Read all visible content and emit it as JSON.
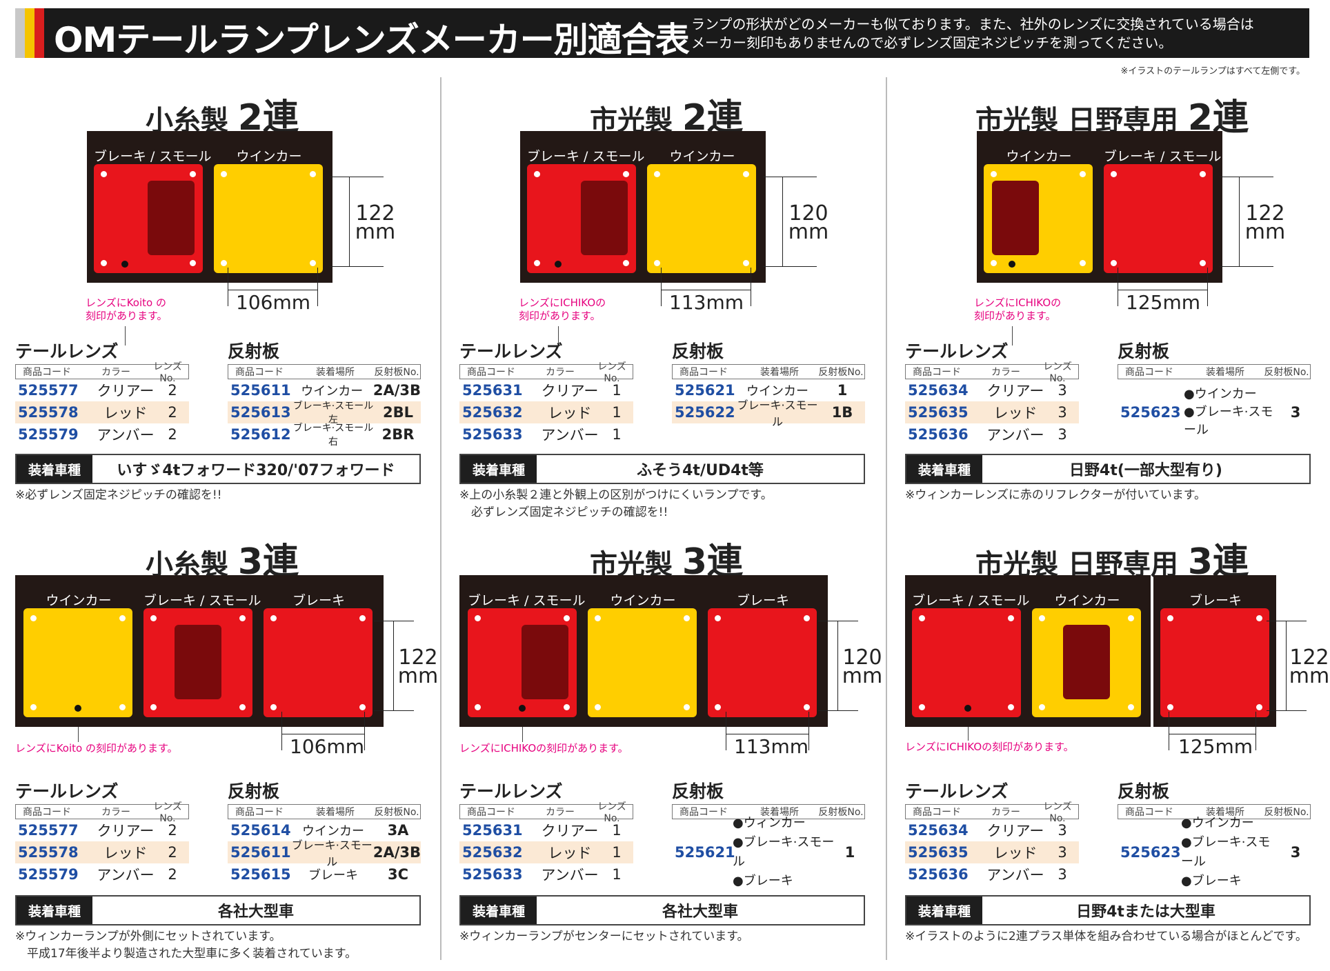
{
  "header": {
    "title": "OMテールランプレンズメーカー別適合表",
    "subtitle_line1": "ランプの形状がどのメーカーも似ております。また、社外のレンズに交換されている場合は",
    "subtitle_line2": "メーカー刻印もありませんので必ずレンズ固定ネジピッチを測ってください。",
    "note": "※イラストのテールランプはすべて左側です。"
  },
  "common": {
    "lens_heading": "テールレンズ",
    "refl_heading": "反射板",
    "lens_cols": [
      "商品コード",
      "カラー",
      "レンズNo."
    ],
    "refl_cols": [
      "商品コード",
      "装着場所",
      "反射板No."
    ],
    "car_label": "装着車種"
  },
  "sections": [
    {
      "title": "小糸製",
      "title_big": "2連",
      "panel_labels": [
        "ブレーキ / スモール",
        "ウインカー"
      ],
      "height_val": "122",
      "height_unit": "mm",
      "width": "106mm",
      "mark_note_1": "レンズにKoito の",
      "mark_note_2": "刻印があります。",
      "lens_rows": [
        {
          "code": "525577",
          "color": "クリアー",
          "no": "2"
        },
        {
          "code": "525578",
          "color": "レッド",
          "no": "2"
        },
        {
          "code": "525579",
          "color": "アンバー",
          "no": "2"
        }
      ],
      "refl_rows": [
        {
          "code": "525611",
          "place": "ウインカー",
          "no": "2A/3B"
        },
        {
          "code": "525613",
          "place": "ブレーキ·スモール左",
          "no": "2BL"
        },
        {
          "code": "525612",
          "place": "ブレーキ·スモール右",
          "no": "2BR"
        }
      ],
      "car": "いすゞ4tフォワード320/'07フォワード",
      "foot_1": "※必ずレンズ固定ネジピッチの確認を!!",
      "foot_2": ""
    },
    {
      "title": "市光製",
      "title_big": "2連",
      "panel_labels": [
        "ブレーキ / スモール",
        "ウインカー"
      ],
      "height_val": "120",
      "height_unit": "mm",
      "width": "113mm",
      "mark_note_1": "レンズにICHIKOの",
      "mark_note_2": "刻印があります。",
      "lens_rows": [
        {
          "code": "525631",
          "color": "クリアー",
          "no": "1"
        },
        {
          "code": "525632",
          "color": "レッド",
          "no": "1"
        },
        {
          "code": "525633",
          "color": "アンバー",
          "no": "1"
        }
      ],
      "refl_rows": [
        {
          "code": "525621",
          "place": "ウインカー",
          "no": "1"
        },
        {
          "code": "525622",
          "place": "ブレーキ·スモール",
          "no": "1B"
        }
      ],
      "car": "ふそう4t/UD4t等",
      "foot_1": "※上の小糸製２連と外観上の区別がつけにくいランプです。",
      "foot_2": "　必ずレンズ固定ネジピッチの確認を!!"
    },
    {
      "title": "市光製 日野専用",
      "title_big": "2連",
      "panel_labels": [
        "ウインカー",
        "ブレーキ / スモール"
      ],
      "height_val": "122",
      "height_unit": "mm",
      "width": "125mm",
      "mark_note_1": "レンズにICHIKOの",
      "mark_note_2": "刻印があります。",
      "lens_rows": [
        {
          "code": "525634",
          "color": "クリアー",
          "no": "3"
        },
        {
          "code": "525635",
          "color": "レッド",
          "no": "3"
        },
        {
          "code": "525636",
          "color": "アンバー",
          "no": "3"
        }
      ],
      "refl_single": {
        "code": "525623",
        "places": [
          "●ウインカー",
          "●ブレーキ·スモール"
        ],
        "no": "3"
      },
      "car": "日野4t(一部大型有り)",
      "foot_1": "※ウィンカーレンズに赤のリフレクターが付いています。",
      "foot_2": ""
    },
    {
      "title": "小糸製",
      "title_big": "3連",
      "panel_labels": [
        "ウインカー",
        "ブレーキ / スモール",
        "ブレーキ"
      ],
      "height_val": "122",
      "height_unit": "mm",
      "width": "106mm",
      "mark_note_1": "レンズにKoito の刻印があります。",
      "lens_rows": [
        {
          "code": "525577",
          "color": "クリアー",
          "no": "2"
        },
        {
          "code": "525578",
          "color": "レッド",
          "no": "2"
        },
        {
          "code": "525579",
          "color": "アンバー",
          "no": "2"
        }
      ],
      "refl_rows": [
        {
          "code": "525614",
          "place": "ウインカー",
          "no": "3A"
        },
        {
          "code": "525611",
          "place": "ブレーキ·スモール",
          "no": "2A/3B"
        },
        {
          "code": "525615",
          "place": "ブレーキ",
          "no": "3C"
        }
      ],
      "car": "各社大型車",
      "foot_1": "※ウィンカーランプが外側にセットされています。",
      "foot_2": "　平成17年後半より製造された大型車に多く装着されています。"
    },
    {
      "title": "市光製",
      "title_big": "3連",
      "panel_labels": [
        "ブレーキ / スモール",
        "ウインカー",
        "ブレーキ"
      ],
      "height_val": "120",
      "height_unit": "mm",
      "width": "113mm",
      "mark_note_1": "レンズにICHIKOの刻印があります。",
      "lens_rows": [
        {
          "code": "525631",
          "color": "クリアー",
          "no": "1"
        },
        {
          "code": "525632",
          "color": "レッド",
          "no": "1"
        },
        {
          "code": "525633",
          "color": "アンバー",
          "no": "1"
        }
      ],
      "refl_single": {
        "code": "525621",
        "places": [
          "●ウィンカー",
          "●ブレーキ·スモール",
          "●ブレーキ"
        ],
        "no": "1"
      },
      "car": "各社大型車",
      "foot_1": "※ウィンカーランプがセンターにセットされています。",
      "foot_2": ""
    },
    {
      "title": "市光製 日野専用",
      "title_big": "3連",
      "panel_labels": [
        "ブレーキ / スモール",
        "ウインカー",
        "ブレーキ"
      ],
      "height_val": "122",
      "height_unit": "mm",
      "width": "125mm",
      "mark_note_1": "レンズにICHIKOの刻印があります。",
      "lens_rows": [
        {
          "code": "525634",
          "color": "クリアー",
          "no": "3"
        },
        {
          "code": "525635",
          "color": "レッド",
          "no": "3"
        },
        {
          "code": "525636",
          "color": "アンバー",
          "no": "3"
        }
      ],
      "refl_single": {
        "code": "525623",
        "places": [
          "●ウインカー",
          "●ブレーキ·スモール",
          "●ブレーキ"
        ],
        "no": "3"
      },
      "car": "日野4tまたは大型車",
      "foot_1": "※イラストのように2連プラス単体を組み合わせている場合がほとんどです。",
      "foot_2": ""
    }
  ],
  "colors": {
    "red": "#e8151c",
    "yellow": "#ffce00",
    "reflector": "#7a0a0c",
    "panel": "#231815",
    "code_blue": "#1f4ea3",
    "note_pink": "#e6007e"
  }
}
